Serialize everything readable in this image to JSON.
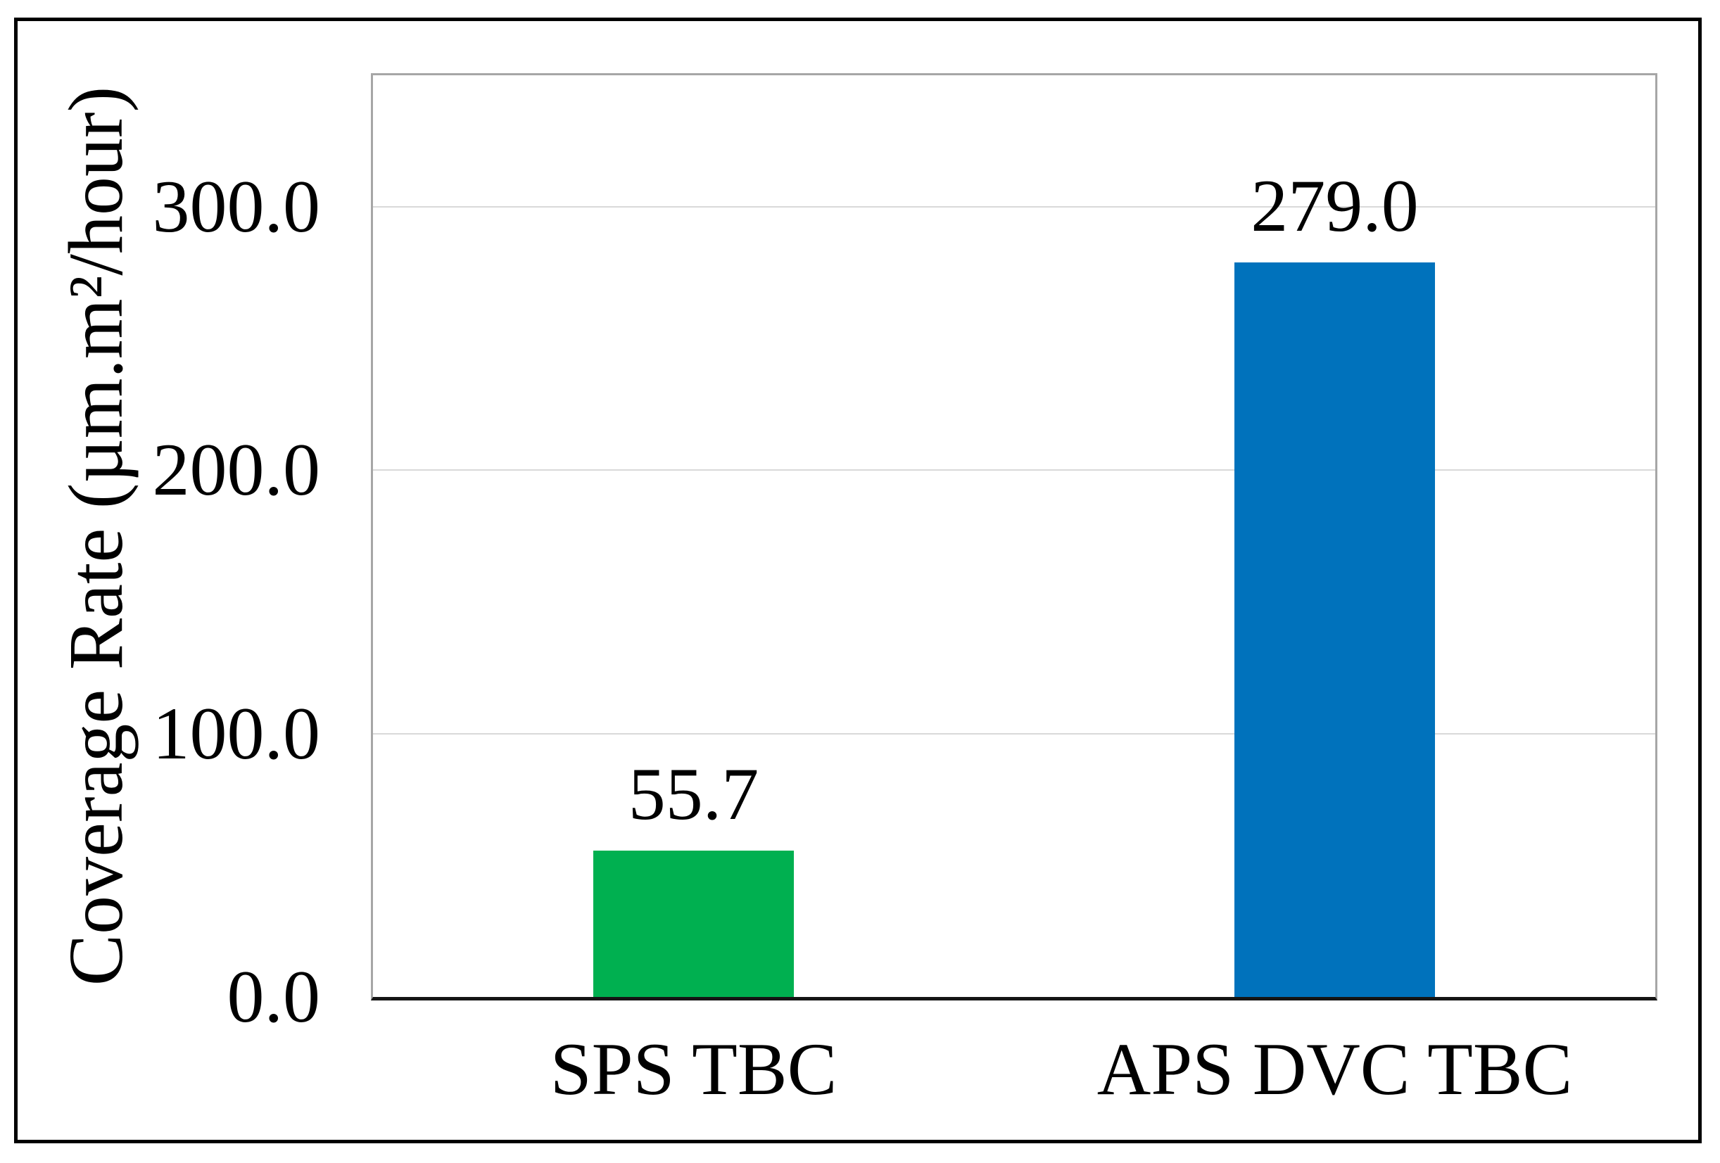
{
  "figure": {
    "background": "#FFFFFF",
    "border_color": "#000000"
  },
  "chart_data": {
    "type": "bar",
    "title": "",
    "categories": [
      "SPS TBC",
      "APS DVC TBC"
    ],
    "values": [
      55.7,
      279.0
    ],
    "value_labels": [
      "55.7",
      "279.0"
    ],
    "bar_colors": [
      "#00B050",
      "#0072BC"
    ],
    "ylabel": "Coverage Rate (µm.m²/hour)",
    "xlabel": "",
    "ytick_values": [
      0,
      100,
      200,
      300
    ],
    "ytick_labels": [
      "0.0",
      "100.0",
      "200.0",
      "300.0"
    ],
    "ylim": [
      0,
      350
    ],
    "gridlines": {
      "show": true,
      "values": [
        100,
        200,
        300
      ],
      "color": "#D9D9D9"
    },
    "axis_line_color": "#151515",
    "plot_border_color": "#A6A6A6",
    "legend": {
      "show": false
    }
  }
}
